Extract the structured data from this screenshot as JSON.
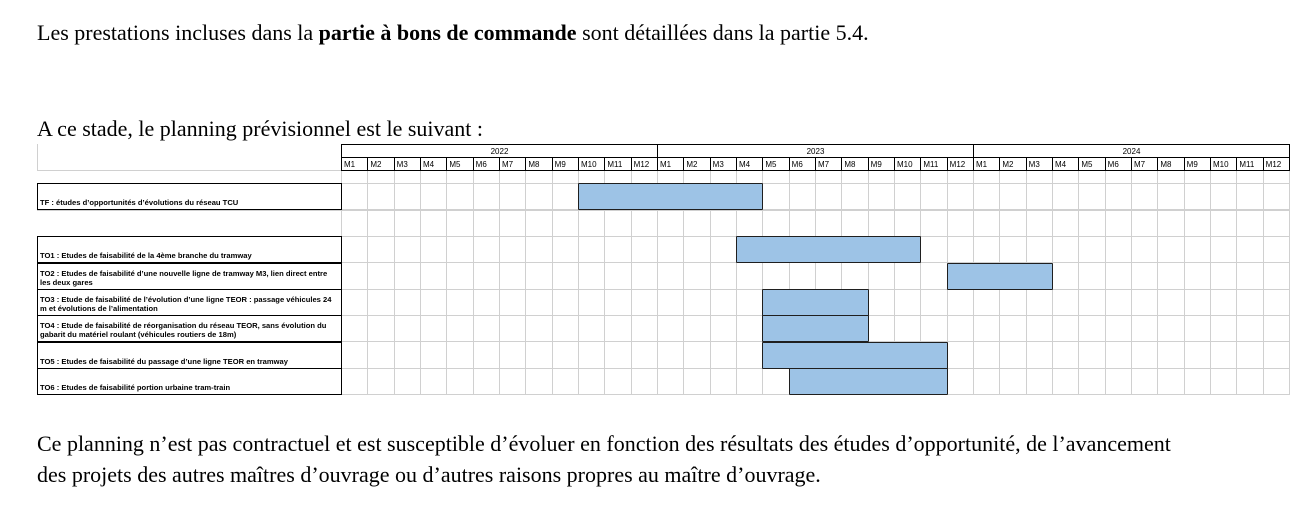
{
  "intro": {
    "before": "Les prestations incluses dans la ",
    "bold": "partie à bons de commande",
    "after": " sont détaillées dans la partie 5.4."
  },
  "lead": "A ce stade, le planning prévisionnel est le suivant :",
  "timeline": {
    "years": [
      {
        "label": "2022",
        "months": [
          "M1",
          "M2",
          "M3",
          "M4",
          "M5",
          "M6",
          "M7",
          "M8",
          "M9",
          "M10",
          "M11",
          "M12"
        ]
      },
      {
        "label": "2023",
        "months": [
          "M1",
          "M2",
          "M3",
          "M4",
          "M5",
          "M6",
          "M7",
          "M8",
          "M9",
          "M10",
          "M11",
          "M12"
        ]
      },
      {
        "label": "2024",
        "months": [
          "M1",
          "M2",
          "M3",
          "M4",
          "M5",
          "M6",
          "M7",
          "M8",
          "M9",
          "M10",
          "M11",
          "M12"
        ]
      }
    ]
  },
  "tasks": [
    {
      "label": "TF : études d’opportunités d’évolutions du réseau TCU",
      "start_month": 10,
      "duration_months": 7
    },
    {
      "label": "TO1 : Etudes de faisabilité de la 4ème branche du tramway",
      "start_month": 16,
      "duration_months": 7
    },
    {
      "label": "TO2 : Etudes de faisabilité d’une nouvelle ligne de tramway M3, lien direct entre les deux gares",
      "start_month": 24,
      "duration_months": 4
    },
    {
      "label": "TO3 : Etude de faisabilité de l’évolution d’une ligne TEOR : passage véhicules 24 m et évolutions de l’alimentation",
      "start_month": 17,
      "duration_months": 4
    },
    {
      "label": "TO4 : Etude de faisabilité de réorganisation du réseau TEOR, sans évolution du gabarit du matériel roulant (véhicules routiers de 18m)",
      "start_month": 17,
      "duration_months": 4
    },
    {
      "label": "TO5 : Etudes de faisabilité du passage d’une ligne TEOR en tramway",
      "start_month": 17,
      "duration_months": 7
    },
    {
      "label": "TO6 : Etudes de faisabilité portion urbaine tram-train",
      "start_month": 18,
      "duration_months": 6
    }
  ],
  "outro": "Ce planning n’est pas contractuel et est susceptible d’évoluer en fonction des résultats des études d’opportunité, de l’avancement des projets des autres maîtres d’ouvrage ou d’autres raisons propres au maître d’ouvrage."
}
